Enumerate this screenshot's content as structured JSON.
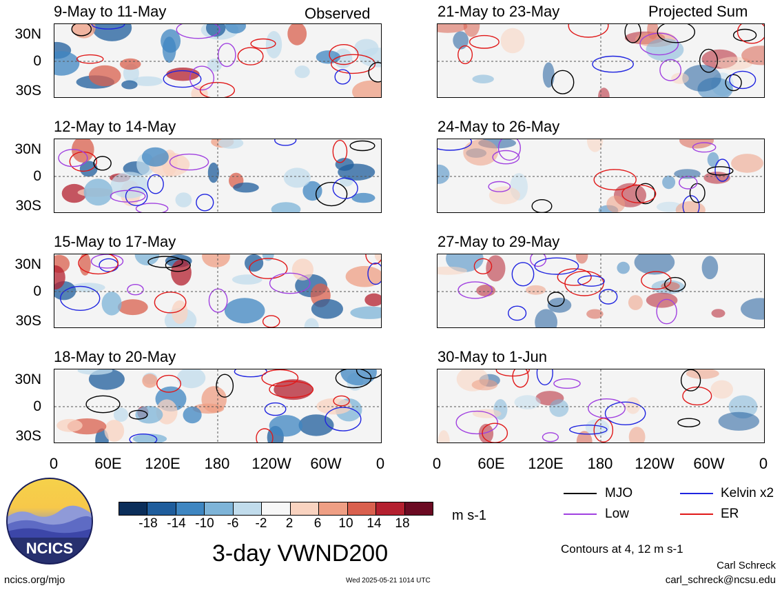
{
  "panel_titles": {
    "left": [
      "9-May to 11-May",
      "12-May to 14-May",
      "15-May to 17-May",
      "18-May to 20-May"
    ],
    "right": [
      "21-May to 23-May",
      "24-May to 26-May",
      "27-May to 29-May",
      "30-May to 1-Jun"
    ]
  },
  "section_labels": {
    "observed": "Observed",
    "projected": "Projected Sum"
  },
  "lat_labels": [
    "30N",
    "0",
    "30S"
  ],
  "lon_labels": [
    "0",
    "60E",
    "120E",
    "180",
    "120W",
    "60W",
    "0"
  ],
  "colorbar": {
    "labels": [
      "-18",
      "-14",
      "-10",
      "-6",
      "-2",
      "2",
      "6",
      "10",
      "14",
      "18"
    ],
    "colors": [
      "#0b2e5a",
      "#1f5d9c",
      "#3f86c1",
      "#7eb4d8",
      "#c1dcec",
      "#f7f7f7",
      "#f9d3c0",
      "#ef9f84",
      "#d9604e",
      "#b4202f",
      "#6b0a22"
    ],
    "units": "m s-1"
  },
  "legend": {
    "items": [
      {
        "label": "MJO",
        "color": "#000000"
      },
      {
        "label": "Kelvin x2",
        "color": "#1f24e0"
      },
      {
        "label": "Low",
        "color": "#a040e0"
      },
      {
        "label": "ER",
        "color": "#e01818"
      }
    ],
    "contours_note": "Contours at 4, 12 m s-1"
  },
  "main_title": "3-day VWND200",
  "logo_text": "NCICS",
  "footer": {
    "url": "ncics.org/mjo",
    "timestamp": "Wed 2025-05-21 1014 UTC",
    "author": "Carl Schreck",
    "email": "carl_schreck@ncsu.edu"
  }
}
